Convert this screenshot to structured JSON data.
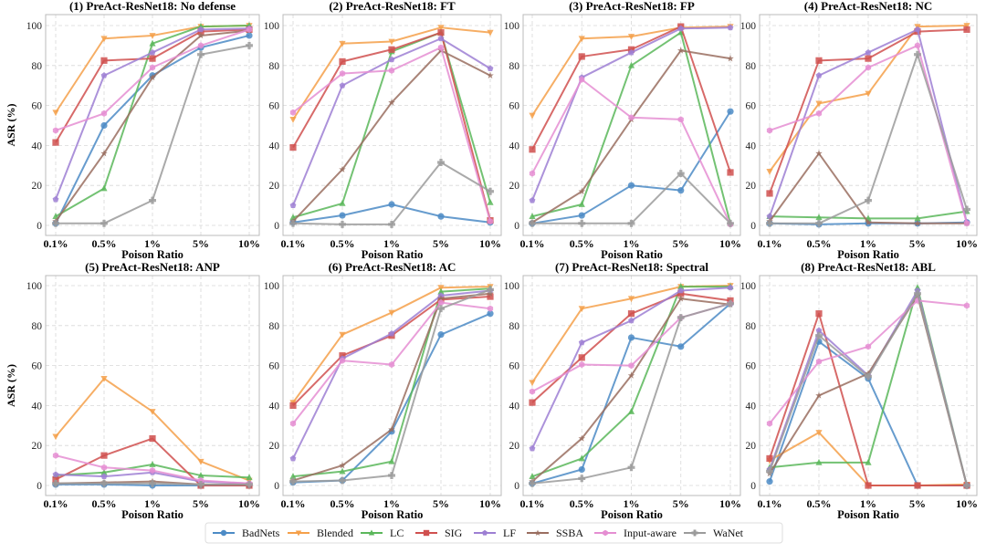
{
  "chart_data": {
    "type": "line",
    "x": [
      "0.1%",
      "0.5%",
      "1%",
      "5%",
      "10%"
    ],
    "xlabel": "Poison Ratio",
    "ylabel": "ASR (%)",
    "ylim": [
      -4,
      104
    ],
    "yticks": [
      0,
      20,
      40,
      60,
      80,
      100
    ],
    "grid": true,
    "legend": {
      "placement": "bottom-center",
      "entries": [
        "BadNets",
        "Blended",
        "LC",
        "SIG",
        "LF",
        "SSBA",
        "Input-aware",
        "WaNet"
      ]
    },
    "series_styles": [
      {
        "name": "BadNets",
        "color": "#4C8BC6",
        "marker": "circle"
      },
      {
        "name": "Blended",
        "color": "#F5A04A",
        "marker": "triangle-down"
      },
      {
        "name": "LC",
        "color": "#5BB75B",
        "marker": "triangle-up"
      },
      {
        "name": "SIG",
        "color": "#D0504F",
        "marker": "square"
      },
      {
        "name": "LF",
        "color": "#9D7FD3",
        "marker": "pentagon"
      },
      {
        "name": "SSBA",
        "color": "#9A6E60",
        "marker": "star"
      },
      {
        "name": "Input-aware",
        "color": "#E58ED2",
        "marker": "hexagon"
      },
      {
        "name": "WaNet",
        "color": "#9B9B9B",
        "marker": "plus"
      }
    ],
    "subplots": [
      {
        "title": "(1) PreAct-ResNet18: No defense",
        "series": [
          {
            "name": "BadNets",
            "values": [
              1,
              50,
              75,
              89,
              95
            ]
          },
          {
            "name": "Blended",
            "values": [
              56.5,
              93.5,
              95,
              99.5,
              100
            ]
          },
          {
            "name": "LC",
            "values": [
              4.5,
              18.5,
              91,
              99.5,
              100
            ]
          },
          {
            "name": "SIG",
            "values": [
              41.5,
              82.5,
              83.5,
              97,
              98
            ]
          },
          {
            "name": "LF",
            "values": [
              13,
              75,
              86.5,
              98,
              98.5
            ]
          },
          {
            "name": "SSBA",
            "values": [
              2,
              36,
              74,
              95,
              97.5
            ]
          },
          {
            "name": "Input-aware",
            "values": [
              47.5,
              56,
              79,
              90,
              98
            ]
          },
          {
            "name": "WaNet",
            "values": [
              1,
              1,
              12.5,
              85.5,
              90
            ]
          }
        ]
      },
      {
        "title": "(2) PreAct-ResNet18: FT",
        "series": [
          {
            "name": "BadNets",
            "values": [
              1.5,
              5,
              10.5,
              4.5,
              1.5
            ]
          },
          {
            "name": "Blended",
            "values": [
              53,
              91,
              92,
              99,
              96.5
            ]
          },
          {
            "name": "LC",
            "values": [
              4,
              11,
              87,
              96.5,
              11.5
            ]
          },
          {
            "name": "SIG",
            "values": [
              39,
              82,
              88,
              96.5,
              2.5
            ]
          },
          {
            "name": "LF",
            "values": [
              10,
              70,
              83,
              93.5,
              78.5
            ]
          },
          {
            "name": "SSBA",
            "values": [
              2,
              28,
              61.5,
              87.5,
              75
            ]
          },
          {
            "name": "Input-aware",
            "values": [
              56.5,
              76,
              77.5,
              89,
              2
            ]
          },
          {
            "name": "WaNet",
            "values": [
              1,
              0.5,
              0.5,
              31.5,
              17
            ]
          }
        ]
      },
      {
        "title": "(3) PreAct-ResNet18: FP",
        "series": [
          {
            "name": "BadNets",
            "values": [
              1,
              5,
              20,
              17.5,
              57
            ]
          },
          {
            "name": "Blended",
            "values": [
              55,
              93.5,
              94.5,
              99,
              99.5
            ]
          },
          {
            "name": "LC",
            "values": [
              4.5,
              10.5,
              80,
              96.5,
              1
            ]
          },
          {
            "name": "SIG",
            "values": [
              38,
              84.5,
              88,
              99.5,
              26.5
            ]
          },
          {
            "name": "LF",
            "values": [
              12.5,
              74,
              86.5,
              98.5,
              99
            ]
          },
          {
            "name": "SSBA",
            "values": [
              1.5,
              17,
              53,
              87.5,
              83.5
            ]
          },
          {
            "name": "Input-aware",
            "values": [
              26,
              73,
              54,
              53,
              0.5
            ]
          },
          {
            "name": "WaNet",
            "values": [
              1,
              1,
              1,
              26,
              1
            ]
          }
        ]
      },
      {
        "title": "(4) PreAct-ResNet18: NC",
        "series": [
          {
            "name": "BadNets",
            "values": [
              1,
              0.5,
              1,
              1,
              1.5
            ]
          },
          {
            "name": "Blended",
            "values": [
              27,
              61,
              66,
              99.5,
              100
            ]
          },
          {
            "name": "LC",
            "values": [
              4.5,
              4,
              3.5,
              3.5,
              7
            ]
          },
          {
            "name": "SIG",
            "values": [
              16,
              82.5,
              83.5,
              97,
              98
            ]
          },
          {
            "name": "LF",
            "values": [
              4.5,
              75,
              86.5,
              98,
              1.5
            ]
          },
          {
            "name": "SSBA",
            "values": [
              2,
              36,
              1.5,
              1,
              1
            ]
          },
          {
            "name": "Input-aware",
            "values": [
              47.5,
              56,
              79,
              90,
              1
            ]
          },
          {
            "name": "WaNet",
            "values": [
              1,
              1,
              12.5,
              85.5,
              8
            ]
          }
        ]
      },
      {
        "title": "(5) PreAct-ResNet18: ANP",
        "series": [
          {
            "name": "BadNets",
            "values": [
              0.5,
              0.5,
              0,
              0,
              0
            ]
          },
          {
            "name": "Blended",
            "values": [
              24.5,
              53.5,
              37,
              12,
              2.5
            ]
          },
          {
            "name": "LC",
            "values": [
              5,
              6.5,
              10.5,
              5,
              4
            ]
          },
          {
            "name": "SIG",
            "values": [
              3,
              15,
              23.5,
              0,
              0
            ]
          },
          {
            "name": "LF",
            "values": [
              5.5,
              4.5,
              6.5,
              2,
              1
            ]
          },
          {
            "name": "SSBA",
            "values": [
              1,
              1.5,
              2,
              0.5,
              0.5
            ]
          },
          {
            "name": "Input-aware",
            "values": [
              15,
              9,
              7.5,
              2.5,
              1
            ]
          },
          {
            "name": "WaNet",
            "values": [
              1,
              1,
              1,
              0.5,
              0.5
            ]
          }
        ]
      },
      {
        "title": "(6) PreAct-ResNet18: AC",
        "series": [
          {
            "name": "BadNets",
            "values": [
              1.5,
              2.5,
              27,
              75.5,
              86
            ]
          },
          {
            "name": "Blended",
            "values": [
              41.5,
              75.5,
              86.5,
              99,
              99.5
            ]
          },
          {
            "name": "LC",
            "values": [
              4.5,
              7,
              12,
              97,
              98.5
            ]
          },
          {
            "name": "SIG",
            "values": [
              40,
              65,
              75,
              93,
              94.5
            ]
          },
          {
            "name": "LF",
            "values": [
              13.5,
              63.5,
              76,
              95,
              97.5
            ]
          },
          {
            "name": "SSBA",
            "values": [
              2.5,
              10,
              28,
              93.5,
              96
            ]
          },
          {
            "name": "Input-aware",
            "values": [
              31,
              62.5,
              60.5,
              91.5,
              88.5
            ]
          },
          {
            "name": "WaNet",
            "values": [
              2,
              2.5,
              5,
              88.5,
              98
            ]
          }
        ]
      },
      {
        "title": "(7) PreAct-ResNet18: Spectral",
        "series": [
          {
            "name": "BadNets",
            "values": [
              1,
              8,
              74,
              69.5,
              91
            ]
          },
          {
            "name": "Blended",
            "values": [
              51.5,
              88.5,
              93.5,
              99.5,
              100
            ]
          },
          {
            "name": "LC",
            "values": [
              4.5,
              13.5,
              37,
              99.5,
              99.5
            ]
          },
          {
            "name": "SIG",
            "values": [
              41.5,
              64,
              86,
              96,
              92.5
            ]
          },
          {
            "name": "LF",
            "values": [
              18.5,
              71.5,
              82.5,
              97.5,
              99
            ]
          },
          {
            "name": "SSBA",
            "values": [
              2,
              23.5,
              55,
              93.5,
              90.5
            ]
          },
          {
            "name": "Input-aware",
            "values": [
              47,
              60.5,
              60,
              84,
              91
            ]
          },
          {
            "name": "WaNet",
            "values": [
              1,
              3.5,
              9,
              84,
              91
            ]
          }
        ]
      },
      {
        "title": "(8) PreAct-ResNet18: ABL",
        "series": [
          {
            "name": "BadNets",
            "values": [
              2,
              72,
              53.5,
              0,
              0
            ]
          },
          {
            "name": "Blended",
            "values": [
              12.5,
              26.5,
              0,
              0,
              0.5
            ]
          },
          {
            "name": "LC",
            "values": [
              9,
              11.5,
              11.5,
              99,
              0
            ]
          },
          {
            "name": "SIG",
            "values": [
              13.5,
              86,
              0,
              0,
              0
            ]
          },
          {
            "name": "LF",
            "values": [
              8,
              77.5,
              55,
              97.5,
              0
            ]
          },
          {
            "name": "SSBA",
            "values": [
              6,
              45,
              56,
              95,
              0
            ]
          },
          {
            "name": "Input-aware",
            "values": [
              31,
              62,
              69.5,
              92.5,
              90
            ]
          },
          {
            "name": "WaNet",
            "values": [
              7,
              75,
              54.5,
              96,
              0
            ]
          }
        ]
      }
    ]
  }
}
